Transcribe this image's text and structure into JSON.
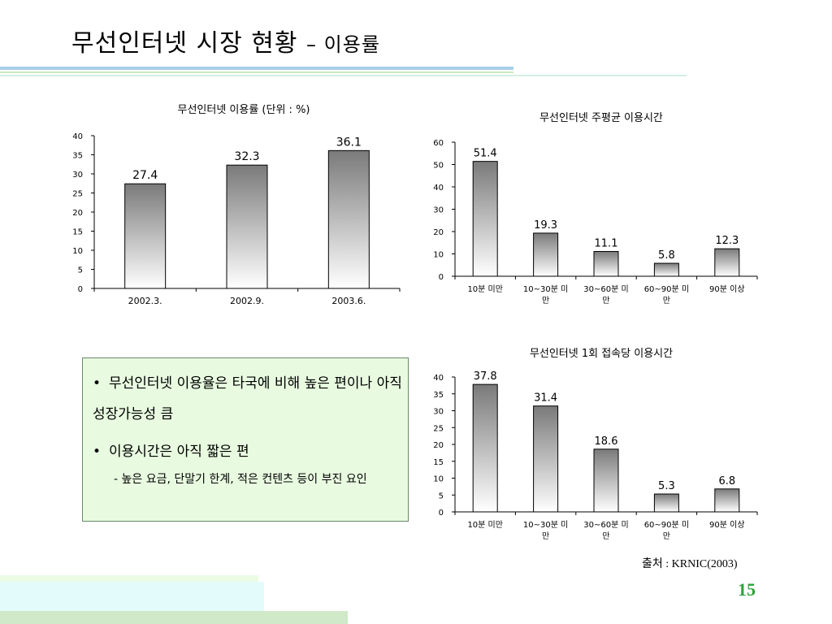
{
  "slide": {
    "title_main": "무선인터넷 시장 현황",
    "title_sub": "– 이용률",
    "source": "출처 : KRNIC(2003)",
    "page_number": "15"
  },
  "notes": {
    "bullet_1": "무선인터넷 이용율은 타국에 비해 높은 편이나 아직 성장가능성 큼",
    "bullet_2": "이용시간은 아직 짧은 편",
    "sub_note": "- 높은 요금, 단말기 한계, 적은 컨텐츠 등이 부진 요인",
    "bullet_symbol": "•"
  },
  "chart_data": [
    {
      "type": "bar",
      "title": "무선인터넷 이용률 (단위 : %)",
      "categories": [
        "2002.3.",
        "2002.9.",
        "2003.6."
      ],
      "values": [
        27.4,
        32.3,
        36.1
      ],
      "value_labels": [
        "27.4",
        "32.3",
        "36.1"
      ],
      "ylim": [
        0,
        40
      ],
      "yticks": [
        0,
        5,
        10,
        15,
        20,
        25,
        30,
        35,
        40
      ],
      "xlabel": "",
      "ylabel": "",
      "grid": false,
      "legend": "none"
    },
    {
      "type": "bar",
      "title": "무선인터넷 주평균 이용시간",
      "categories": [
        "10분 미만",
        "10~30분 미만",
        "30~60분 미만",
        "60~90분 미만",
        "90분 이상"
      ],
      "values": [
        51.4,
        19.3,
        11.1,
        5.8,
        12.3
      ],
      "value_labels": [
        "51.4",
        "19.3",
        "11.1",
        "5.8",
        "12.3"
      ],
      "ylim": [
        0,
        60
      ],
      "yticks": [
        0,
        10,
        20,
        30,
        40,
        50,
        60
      ],
      "xlabel": "",
      "ylabel": "",
      "grid": false,
      "legend": "none"
    },
    {
      "type": "bar",
      "title": "무선인터넷 1회 접속당 이용시간",
      "categories": [
        "10분 미만",
        "10~30분 미만",
        "30~60분 미만",
        "60~90분 미만",
        "90분 이상"
      ],
      "values": [
        37.8,
        31.4,
        18.6,
        5.3,
        6.8
      ],
      "value_labels": [
        "37.8",
        "31.4",
        "18.6",
        "5.3",
        "6.8"
      ],
      "ylim": [
        0,
        40
      ],
      "yticks": [
        0,
        5,
        10,
        15,
        20,
        25,
        30,
        35,
        40
      ],
      "xlabel": "",
      "ylabel": "",
      "grid": false,
      "legend": "none"
    }
  ],
  "colors": {
    "bar_top": "#7a7a7a",
    "bar_bottom": "#ffffff",
    "note_bg": "#e8fbe0",
    "page_number": "#2fa13a",
    "accent_line": "#9ecbe8"
  }
}
